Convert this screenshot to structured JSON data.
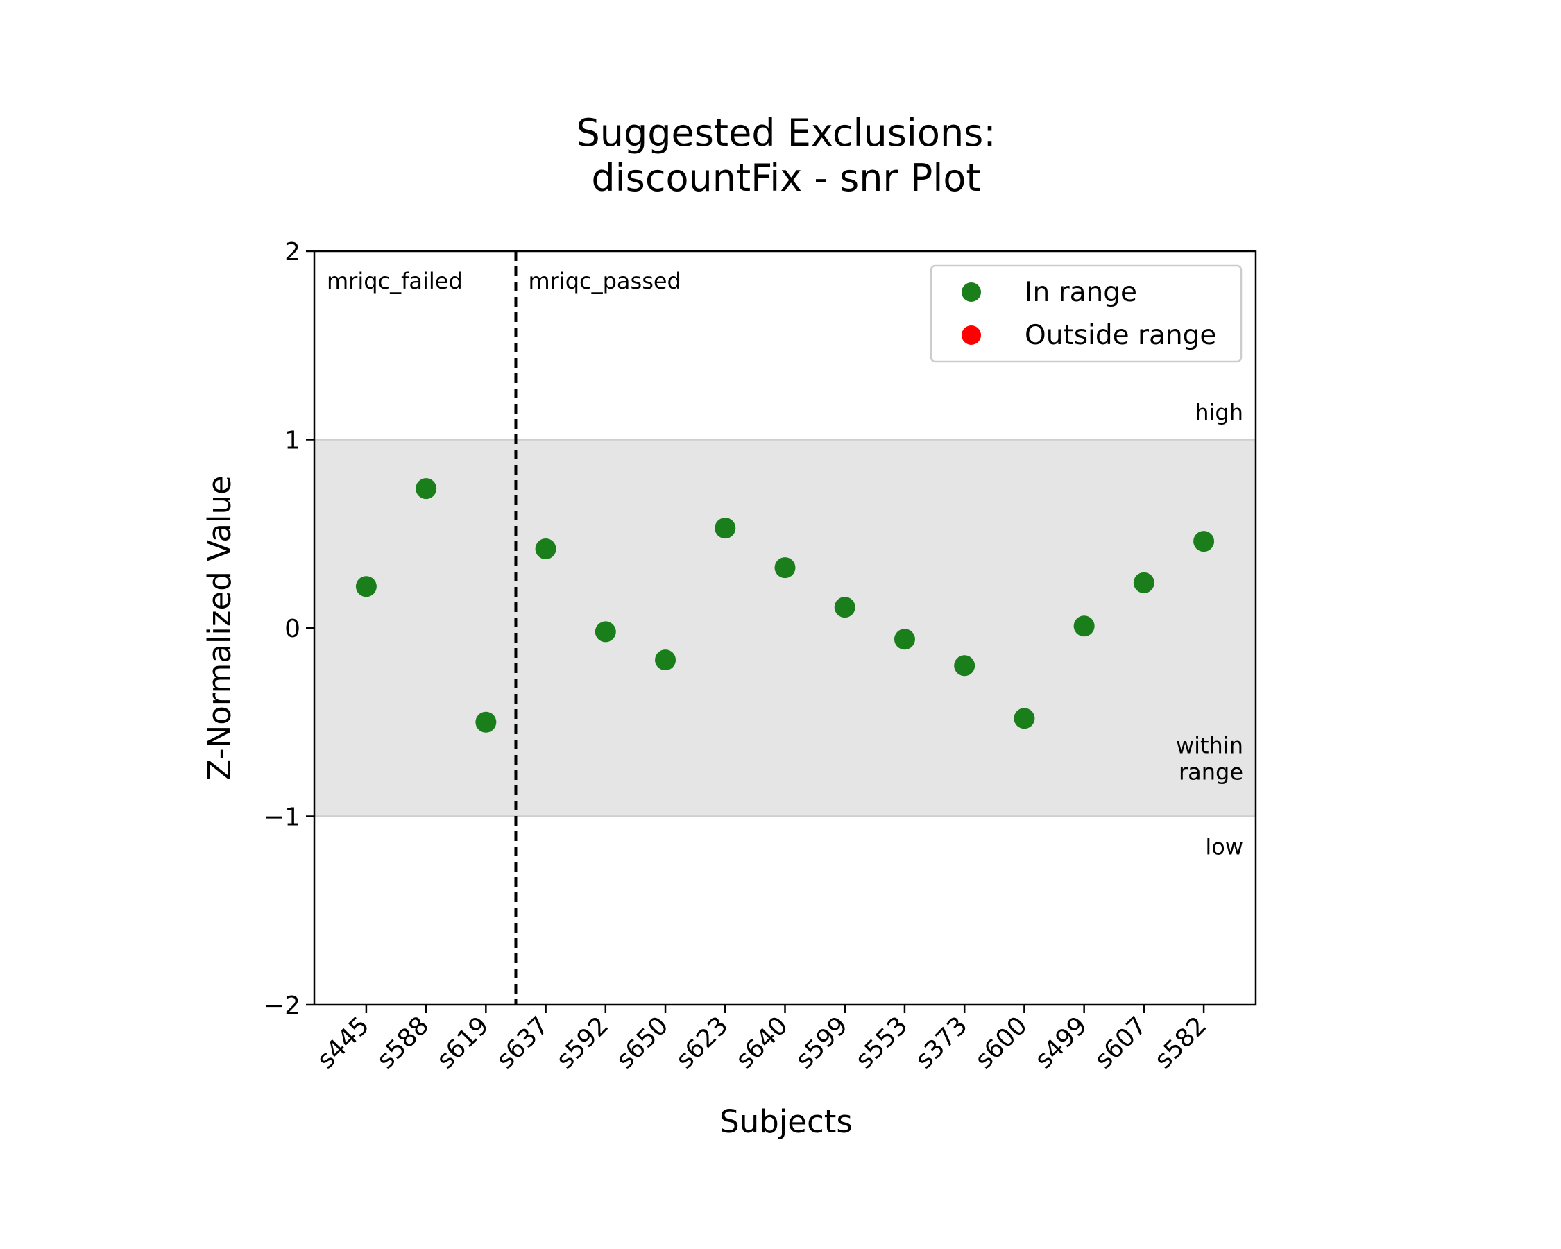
{
  "chart_data": {
    "type": "scatter",
    "title_lines": [
      "Suggested Exclusions:",
      "discountFix - snr Plot"
    ],
    "xlabel": "Subjects",
    "ylabel": "Z-Normalized Value",
    "ylim": [
      -2,
      2
    ],
    "yticks": [
      {
        "value": 2,
        "label": "2"
      },
      {
        "value": 1,
        "label": "1"
      },
      {
        "value": 0,
        "label": "0"
      },
      {
        "value": -1,
        "label": "−1"
      },
      {
        "value": -2,
        "label": "−2"
      }
    ],
    "categories": [
      "s445",
      "s588",
      "s619",
      "s637",
      "s592",
      "s650",
      "s623",
      "s640",
      "s599",
      "s553",
      "s373",
      "s600",
      "s499",
      "s607",
      "s582"
    ],
    "values": [
      0.22,
      0.74,
      -0.5,
      0.42,
      -0.02,
      -0.17,
      0.53,
      0.32,
      0.11,
      -0.06,
      -0.2,
      -0.48,
      0.01,
      0.24,
      0.46
    ],
    "range": [
      -1,
      1
    ],
    "groups": [
      {
        "label": "mriqc_failed",
        "count": 3
      },
      {
        "label": "mriqc_passed",
        "count": 12
      }
    ],
    "region_labels": {
      "high": "high",
      "within": [
        "within",
        "range"
      ],
      "low": "low"
    },
    "legend": {
      "placement": "top-right",
      "entries": [
        {
          "label": "In range",
          "color": "#1a7f1a"
        },
        {
          "label": "Outside range",
          "color": "#ff0000"
        }
      ]
    },
    "colors": {
      "in_range": "#1a7f1a",
      "outside_range": "#ff0000",
      "band": "#e5e5e5"
    }
  }
}
